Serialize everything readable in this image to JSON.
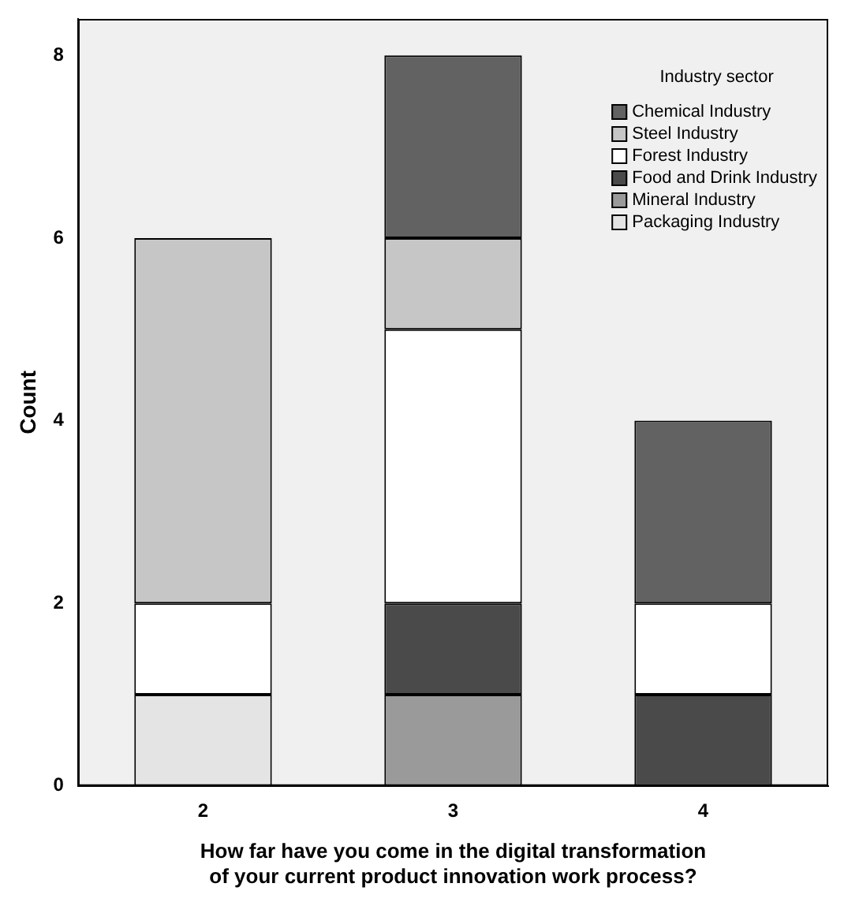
{
  "chart_data": {
    "type": "bar",
    "stacked": true,
    "xlabel": "How far have you come in the digital transformation of your current product innovation work process?",
    "ylabel": "Count",
    "legend_title": "Industry sector",
    "legend": "top right",
    "categories": [
      "2",
      "3",
      "4"
    ],
    "ylim": [
      0,
      8.4
    ],
    "yticks": [
      0,
      2,
      4,
      6,
      8
    ],
    "series": [
      {
        "name": "Packaging Industry",
        "color": "#e4e4e4",
        "values": [
          1,
          null,
          null
        ]
      },
      {
        "name": "Mineral Industry",
        "color": "#9a9a9a",
        "values": [
          null,
          1,
          null
        ]
      },
      {
        "name": "Food and Drink Industry",
        "color": "#4a4a4a",
        "values": [
          null,
          1,
          1
        ]
      },
      {
        "name": "Forest Industry",
        "color": "#ffffff",
        "values": [
          1,
          3,
          1
        ]
      },
      {
        "name": "Steel Industry",
        "color": "#c6c6c6",
        "values": [
          4,
          1,
          null
        ]
      },
      {
        "name": "Chemical Industry",
        "color": "#626262",
        "values": [
          null,
          2,
          2
        ]
      }
    ]
  }
}
